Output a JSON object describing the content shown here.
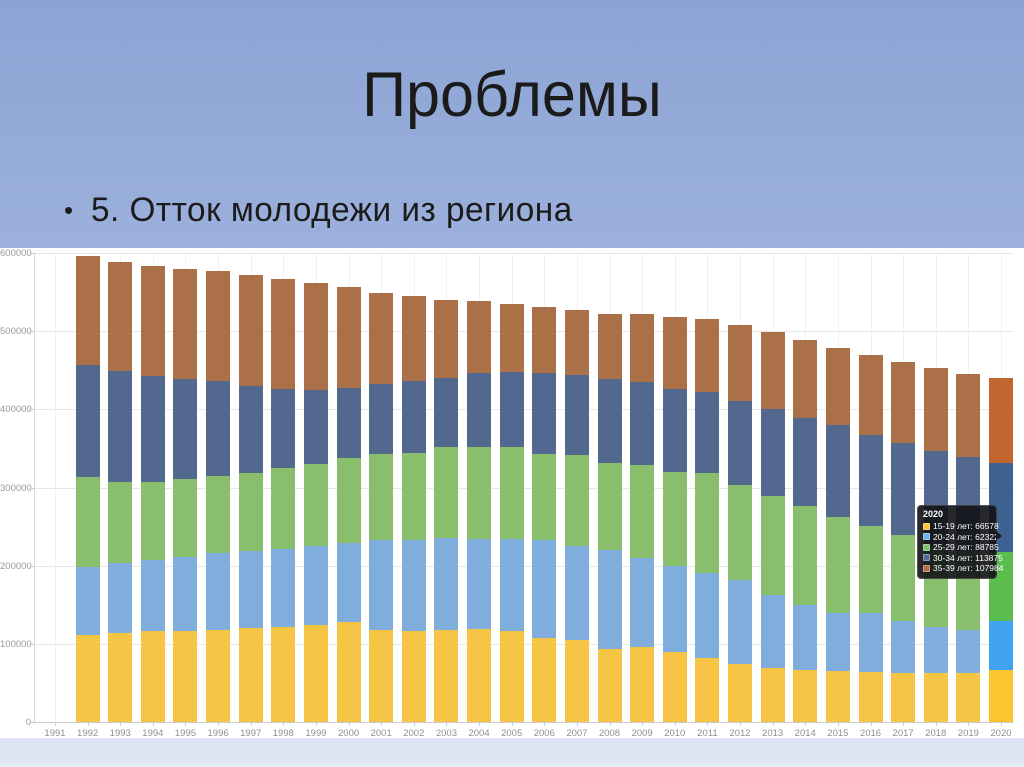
{
  "slide": {
    "title": "Проблемы",
    "bullet_marker": "•",
    "bullet_text": "5. Отток молодежи из региона"
  },
  "chart_data": {
    "type": "bar",
    "stacked": true,
    "title": "",
    "xlabel": "",
    "ylabel": "",
    "grid": true,
    "legend_position": "none",
    "ylim": [
      0,
      600000
    ],
    "yticks": [
      0,
      100000,
      200000,
      300000,
      400000,
      500000,
      600000
    ],
    "categories": [
      "1991",
      "1992",
      "1993",
      "1994",
      "1995",
      "1996",
      "1997",
      "1998",
      "1999",
      "2000",
      "2001",
      "2002",
      "2003",
      "2004",
      "2005",
      "2006",
      "2007",
      "2008",
      "2009",
      "2010",
      "2011",
      "2012",
      "2013",
      "2014",
      "2015",
      "2016",
      "2017",
      "2018",
      "2019",
      "2020"
    ],
    "series": [
      {
        "name": "15-19 лет",
        "color": "#F7C546",
        "highlight_color": "#FCC42D",
        "values": [
          0,
          111400,
          113500,
          115800,
          116700,
          118000,
          120100,
          121000,
          124500,
          127500,
          118000,
          115800,
          118000,
          118800,
          115800,
          107900,
          104900,
          93900,
          96100,
          89600,
          81700,
          74300,
          68700,
          67000,
          65700,
          64300,
          62500,
          62500,
          62100,
          66578
        ]
      },
      {
        "name": "20-24 лет",
        "color": "#7FAEDC",
        "highlight_color": "#3FA3F2",
        "values": [
          0,
          87200,
          90300,
          91500,
          94900,
          98100,
          98100,
          100700,
          101100,
          101700,
          114200,
          116800,
          117200,
          115600,
          117700,
          124300,
          120700,
          125600,
          114200,
          109900,
          109000,
          106900,
          94100,
          82800,
          74000,
          75400,
          67300,
          58500,
          55000,
          62322
        ]
      },
      {
        "name": "25-29 лет",
        "color": "#88BE6C",
        "highlight_color": "#5CBD4F",
        "values": [
          0,
          114300,
          103800,
          100300,
          99400,
          98100,
          100300,
          103300,
          104700,
          108000,
          110200,
          111100,
          116000,
          117700,
          118600,
          111100,
          116000,
          112100,
          119100,
          120300,
          127400,
          122000,
          126500,
          126400,
          122200,
          111200,
          108900,
          104600,
          102000,
          88785
        ]
      },
      {
        "name": "30-34 лет",
        "color": "#53688E",
        "highlight_color": "#3D6191",
        "values": [
          0,
          143900,
          141700,
          135200,
          128300,
          122100,
          111200,
          101200,
          94200,
          90300,
          89500,
          92500,
          89300,
          95000,
          95900,
          103800,
          102100,
          107600,
          105500,
          106400,
          103800,
          107800,
          111200,
          113300,
          117700,
          116400,
          117700,
          121300,
          119900,
          113875
        ]
      },
      {
        "name": "35-39 лет",
        "color": "#AC7049",
        "highlight_color": "#C1662F",
        "values": [
          0,
          139400,
          139600,
          140300,
          140800,
          140900,
          142600,
          139900,
          136900,
          129400,
          117200,
          109000,
          99100,
          91500,
          86300,
          83700,
          83700,
          83300,
          87200,
          91500,
          94100,
          97200,
          98900,
          99000,
          98900,
          101600,
          103800,
          105400,
          106000,
          107984
        ]
      }
    ],
    "highlighted_category": "2020",
    "tooltip": {
      "title": "2020",
      "rows": [
        {
          "label": "15-19 лет",
          "value": "66578",
          "color": "#FBC32F"
        },
        {
          "label": "20-24 лет",
          "value": "62322",
          "color": "#6FB4E8"
        },
        {
          "label": "25-29 лет",
          "value": "88785",
          "color": "#7FBE6E"
        },
        {
          "label": "30-34 лет",
          "value": "113875",
          "color": "#56699B"
        },
        {
          "label": "35-39 лет",
          "value": "107984",
          "color": "#B06F4A"
        }
      ]
    }
  }
}
